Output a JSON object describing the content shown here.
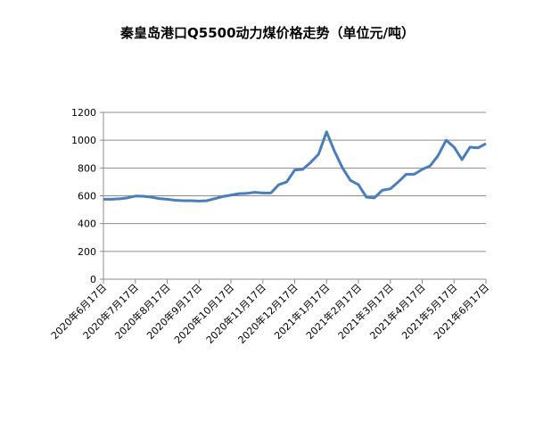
{
  "chart_data": {
    "type": "line",
    "title": "秦皇岛港口Q5500动力煤价格走势（单位元/吨）",
    "categories": [
      "2020年6月17日",
      null,
      null,
      null,
      "2020年7月17日",
      null,
      null,
      null,
      "2020年8月17日",
      null,
      null,
      null,
      "2020年9月17日",
      null,
      null,
      null,
      "2020年10月17日",
      null,
      null,
      null,
      "2020年11月17日",
      null,
      null,
      null,
      "2020年12月17日",
      null,
      null,
      null,
      "2021年1月17日",
      null,
      null,
      null,
      "2021年2月17日",
      null,
      null,
      null,
      "2021年3月17日",
      null,
      null,
      null,
      "2021年4月17日",
      null,
      null,
      null,
      "2021年5月17日",
      null,
      null,
      null,
      "2021年6月17日"
    ],
    "series": [
      {
        "color": "#4a7ebb",
        "values": [
          575,
          575,
          578,
          585,
          598,
          597,
          590,
          580,
          575,
          568,
          565,
          565,
          562,
          565,
          580,
          595,
          605,
          615,
          618,
          625,
          620,
          620,
          680,
          700,
          785,
          790,
          840,
          900,
          1060,
          920,
          800,
          710,
          680,
          590,
          585,
          640,
          650,
          700,
          755,
          755,
          790,
          815,
          890,
          1000,
          950,
          860,
          950,
          945,
          975
        ]
      }
    ],
    "ylim": [
      0,
      1200
    ],
    "yticks": [
      0,
      200,
      400,
      600,
      800,
      1000,
      1200
    ],
    "grid": true
  }
}
